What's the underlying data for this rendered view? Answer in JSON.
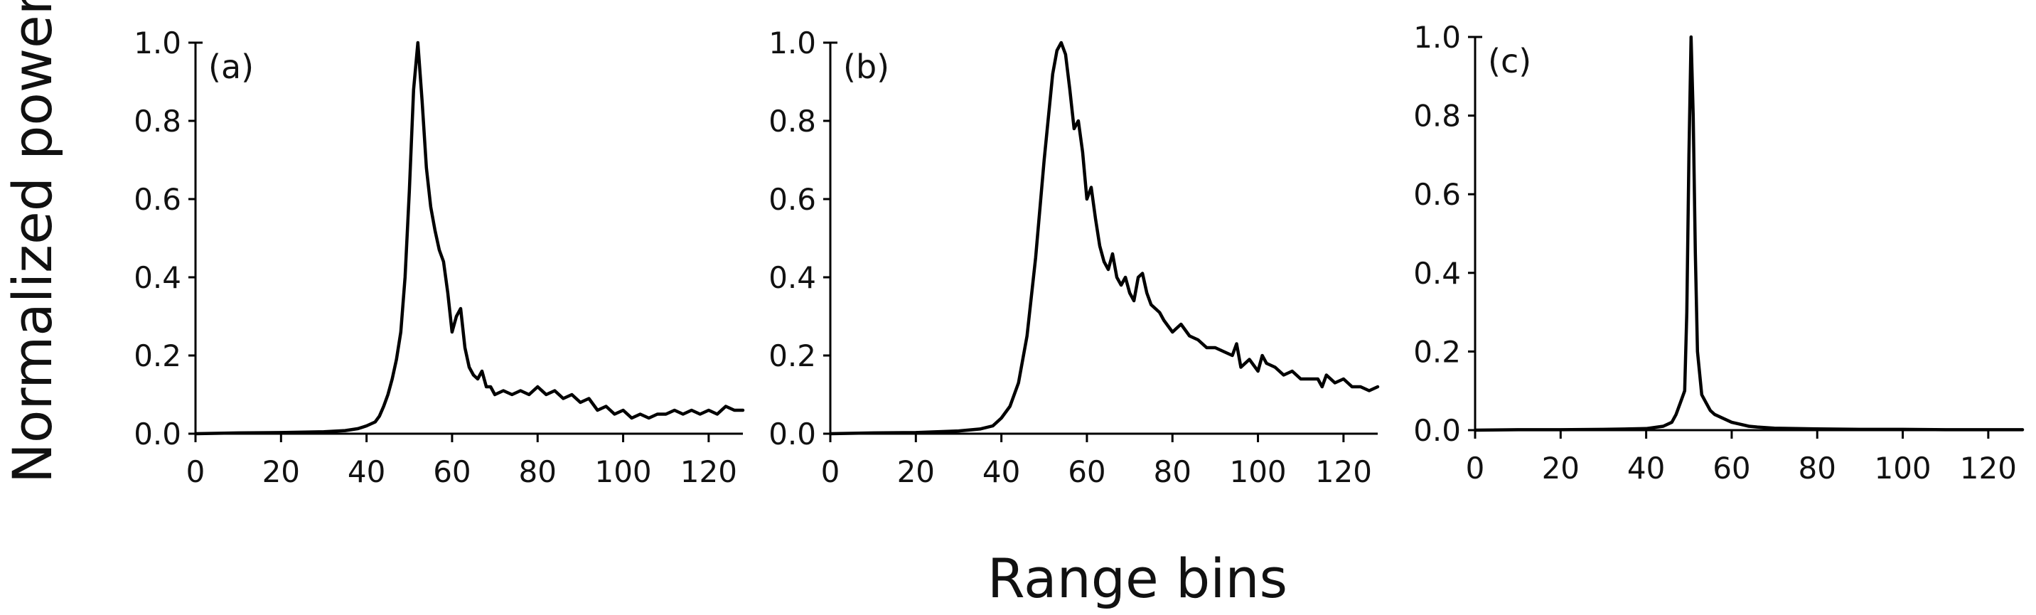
{
  "figure": {
    "ylabel": "Normalized power",
    "xlabel": "Range bins"
  },
  "chart_data": [
    {
      "type": "line",
      "panel_label": "(a)",
      "xlim": [
        0,
        128
      ],
      "ylim": [
        0,
        1
      ],
      "xticks": [
        0,
        20,
        40,
        60,
        80,
        100,
        120
      ],
      "yticks": [
        0.0,
        0.2,
        0.4,
        0.6,
        0.8,
        1.0
      ],
      "xtick_labels": [
        "0",
        "20",
        "40",
        "60",
        "80",
        "100",
        "120"
      ],
      "ytick_labels": [
        "0.0",
        "0.2",
        "0.4",
        "0.6",
        "0.8",
        "1.0"
      ],
      "grid": false,
      "series": [
        {
          "x": [
            0,
            10,
            20,
            30,
            35,
            38,
            40,
            42,
            43,
            44,
            45,
            46,
            47,
            48,
            49,
            50,
            51,
            52,
            53,
            54,
            55,
            56,
            57,
            58,
            59,
            60,
            61,
            62,
            63,
            64,
            65,
            66,
            67,
            68,
            69,
            70,
            72,
            74,
            76,
            78,
            80,
            82,
            84,
            86,
            88,
            90,
            92,
            94,
            96,
            98,
            100,
            102,
            104,
            106,
            108,
            110,
            112,
            114,
            116,
            118,
            120,
            122,
            124,
            126,
            128
          ],
          "y": [
            0.0,
            0.002,
            0.003,
            0.005,
            0.008,
            0.013,
            0.02,
            0.03,
            0.045,
            0.07,
            0.1,
            0.14,
            0.19,
            0.26,
            0.4,
            0.62,
            0.88,
            1.0,
            0.85,
            0.68,
            0.58,
            0.52,
            0.47,
            0.44,
            0.36,
            0.26,
            0.3,
            0.32,
            0.22,
            0.17,
            0.15,
            0.14,
            0.16,
            0.12,
            0.12,
            0.1,
            0.11,
            0.1,
            0.11,
            0.1,
            0.12,
            0.1,
            0.11,
            0.09,
            0.1,
            0.08,
            0.09,
            0.06,
            0.07,
            0.05,
            0.06,
            0.04,
            0.05,
            0.04,
            0.05,
            0.05,
            0.06,
            0.05,
            0.06,
            0.05,
            0.06,
            0.05,
            0.07,
            0.06,
            0.06
          ]
        }
      ]
    },
    {
      "type": "line",
      "panel_label": "(b)",
      "xlim": [
        0,
        128
      ],
      "ylim": [
        0,
        1
      ],
      "xticks": [
        0,
        20,
        40,
        60,
        80,
        100,
        120
      ],
      "yticks": [
        0.0,
        0.2,
        0.4,
        0.6,
        0.8,
        1.0
      ],
      "xtick_labels": [
        "0",
        "20",
        "40",
        "60",
        "80",
        "100",
        "120"
      ],
      "ytick_labels": [
        "0.0",
        "0.2",
        "0.4",
        "0.6",
        "0.8",
        "1.0"
      ],
      "grid": false,
      "series": [
        {
          "x": [
            0,
            10,
            20,
            30,
            35,
            38,
            40,
            42,
            44,
            46,
            48,
            50,
            52,
            53,
            54,
            55,
            56,
            57,
            58,
            59,
            60,
            61,
            62,
            63,
            64,
            65,
            66,
            67,
            68,
            69,
            70,
            71,
            72,
            73,
            74,
            75,
            76,
            77,
            78,
            80,
            82,
            84,
            86,
            88,
            90,
            92,
            94,
            95,
            96,
            98,
            100,
            101,
            102,
            104,
            106,
            108,
            110,
            112,
            114,
            115,
            116,
            118,
            120,
            122,
            124,
            126,
            128
          ],
          "y": [
            0.0,
            0.002,
            0.003,
            0.007,
            0.012,
            0.02,
            0.04,
            0.07,
            0.13,
            0.25,
            0.45,
            0.7,
            0.92,
            0.98,
            1.0,
            0.97,
            0.88,
            0.78,
            0.8,
            0.72,
            0.6,
            0.63,
            0.55,
            0.48,
            0.44,
            0.42,
            0.46,
            0.4,
            0.38,
            0.4,
            0.36,
            0.34,
            0.4,
            0.41,
            0.36,
            0.33,
            0.32,
            0.31,
            0.29,
            0.26,
            0.28,
            0.25,
            0.24,
            0.22,
            0.22,
            0.21,
            0.2,
            0.23,
            0.17,
            0.19,
            0.16,
            0.2,
            0.18,
            0.17,
            0.15,
            0.16,
            0.14,
            0.14,
            0.14,
            0.12,
            0.15,
            0.13,
            0.14,
            0.12,
            0.12,
            0.11,
            0.12
          ]
        }
      ]
    },
    {
      "type": "line",
      "panel_label": "(c)",
      "xlim": [
        0,
        128
      ],
      "ylim": [
        0,
        1
      ],
      "xticks": [
        0,
        20,
        40,
        60,
        80,
        100,
        120
      ],
      "yticks": [
        0.0,
        0.2,
        0.4,
        0.6,
        0.8,
        1.0
      ],
      "xtick_labels": [
        "0",
        "20",
        "40",
        "60",
        "80",
        "100",
        "120"
      ],
      "ytick_labels": [
        "0.0",
        "0.2",
        "0.4",
        "0.6",
        "0.8",
        "1.0"
      ],
      "grid": false,
      "series": [
        {
          "x": [
            0,
            10,
            20,
            30,
            40,
            44,
            46,
            47,
            48,
            49,
            49.5,
            50,
            50.5,
            51,
            51.5,
            52,
            53,
            54,
            55,
            56,
            58,
            60,
            62,
            64,
            66,
            70,
            80,
            90,
            100,
            110,
            120,
            128
          ],
          "y": [
            0.0,
            0.001,
            0.001,
            0.002,
            0.004,
            0.01,
            0.02,
            0.04,
            0.07,
            0.1,
            0.3,
            0.7,
            1.0,
            0.8,
            0.45,
            0.2,
            0.09,
            0.07,
            0.05,
            0.04,
            0.03,
            0.02,
            0.015,
            0.01,
            0.008,
            0.005,
            0.003,
            0.002,
            0.002,
            0.001,
            0.001,
            0.001
          ]
        }
      ]
    }
  ]
}
